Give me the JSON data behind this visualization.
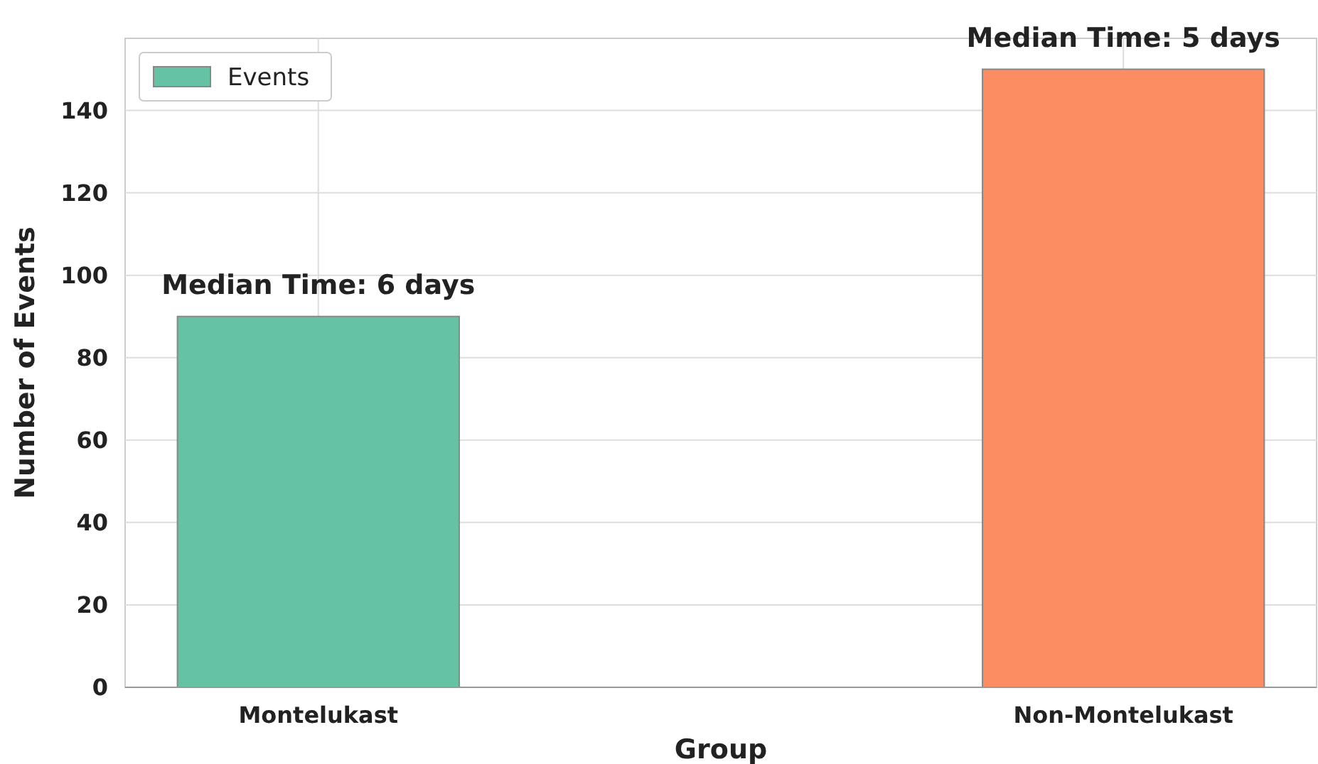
{
  "chart_data": {
    "type": "bar",
    "xlabel": "Group",
    "ylabel": "Number of Events",
    "categories": [
      "Montelukast",
      "Non-Montelukast"
    ],
    "series": [
      {
        "name": "Events",
        "color": "#66c2a5",
        "colors": [
          "#66c2a5",
          "#fc8d62"
        ],
        "values": [
          90,
          150
        ]
      }
    ],
    "ylim": [
      0,
      157.5
    ],
    "yticks": [
      0,
      20,
      40,
      60,
      80,
      100,
      120,
      140
    ],
    "grid": true,
    "legend": "top left",
    "annotations": [
      {
        "text": "Median Time: 6 days",
        "x": "Montelukast",
        "y": 90
      },
      {
        "text": "Median Time: 5 days",
        "x": "Non-Montelukast",
        "y": 150
      }
    ]
  }
}
